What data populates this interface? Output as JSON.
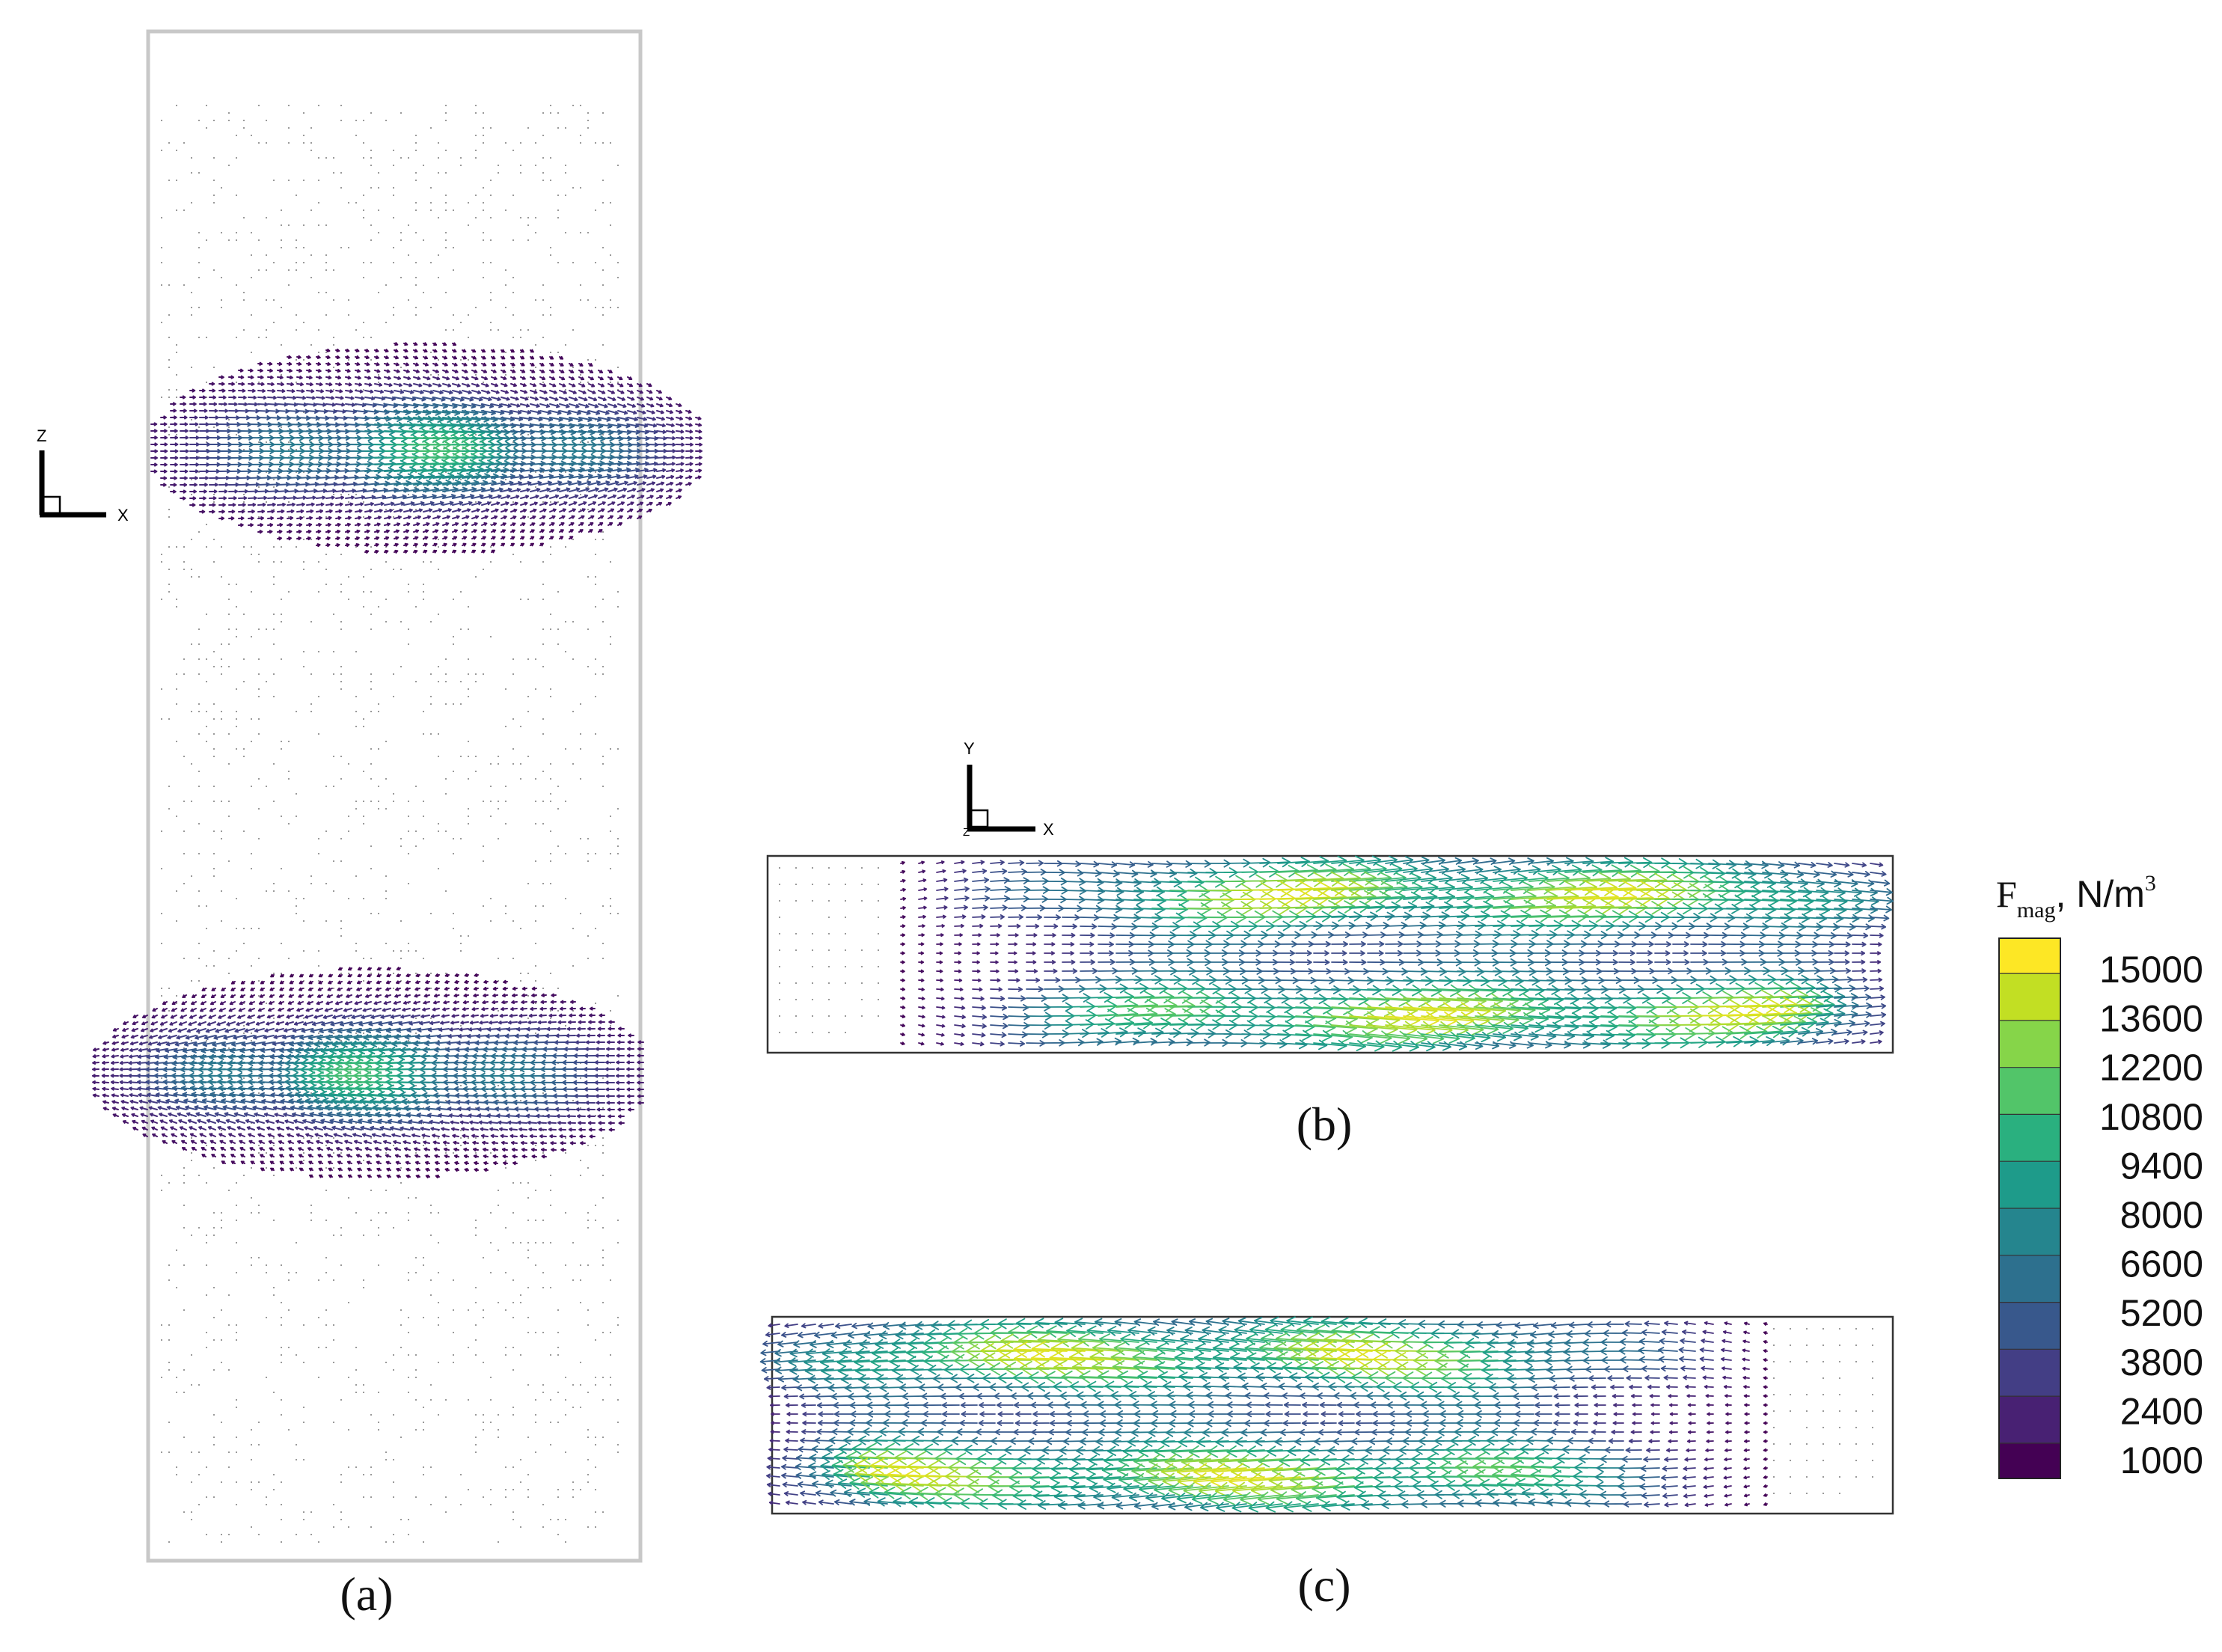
{
  "panels": {
    "a": {
      "caption": "(a)",
      "axes": {
        "vertical": "Z",
        "horizontal": "X"
      }
    },
    "b": {
      "caption": "(b)",
      "axes": {
        "vertical": "Y",
        "horizontal": "X",
        "depth": "Z"
      }
    },
    "c": {
      "caption": "(c)"
    }
  },
  "colorbar": {
    "title_symbol": "F",
    "title_subscript": "mag",
    "title_unit": ", N/m",
    "title_exponent": "3",
    "levels": [
      "15000",
      "13600",
      "12200",
      "10800",
      "9400",
      "8000",
      "6600",
      "5200",
      "3800",
      "2400",
      "1000"
    ],
    "colors": [
      "#fde725",
      "#c2df23",
      "#86d549",
      "#52c569",
      "#2ab07f",
      "#1e9b8a",
      "#25858e",
      "#2d708e",
      "#38588c",
      "#433e85",
      "#482173",
      "#440154"
    ]
  },
  "colormap": "viridis"
}
